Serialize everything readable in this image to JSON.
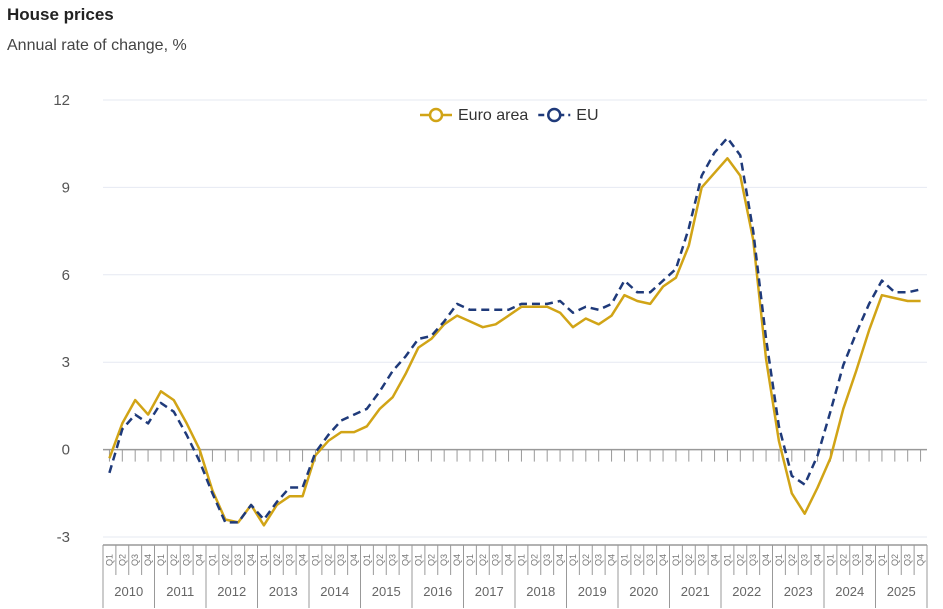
{
  "chart_data": {
    "type": "line",
    "title": "House prices",
    "subtitle": "Annual rate of change, %",
    "ylim": [
      -3,
      12
    ],
    "yticks": [
      -3,
      0,
      3,
      6,
      9,
      12
    ],
    "years": [
      "2010",
      "2011",
      "2012",
      "2013",
      "2014",
      "2015",
      "2016",
      "2017",
      "2018",
      "2019",
      "2020",
      "2021",
      "2022",
      "2023",
      "2024",
      "2025"
    ],
    "quarters": [
      "Q1",
      "Q2",
      "Q3",
      "Q4"
    ],
    "grid": true,
    "legend_position": "top",
    "series": [
      {
        "name": "Euro area",
        "color": "#d1a416",
        "dash": false,
        "values": [
          -0.3,
          0.9,
          1.7,
          1.2,
          2.0,
          1.7,
          0.9,
          0.0,
          -1.4,
          -2.4,
          -2.5,
          -1.9,
          -2.6,
          -1.9,
          -1.6,
          -1.6,
          -0.2,
          0.3,
          0.6,
          0.6,
          0.8,
          1.4,
          1.8,
          2.6,
          3.5,
          3.8,
          4.3,
          4.6,
          4.4,
          4.2,
          4.3,
          4.6,
          4.9,
          4.9,
          4.9,
          4.7,
          4.2,
          4.5,
          4.3,
          4.6,
          5.3,
          5.1,
          5.0,
          5.6,
          5.9,
          7.0,
          9.0,
          9.5,
          10.0,
          9.4,
          7.2,
          3.1,
          0.3,
          -1.5,
          -2.2,
          -1.3,
          -0.3,
          1.4,
          2.7,
          4.1,
          5.3,
          5.2,
          5.1,
          5.1
        ]
      },
      {
        "name": "EU",
        "color": "#1f3a7a",
        "dash": true,
        "values": [
          -0.8,
          0.7,
          1.2,
          0.9,
          1.6,
          1.3,
          0.5,
          -0.4,
          -1.5,
          -2.5,
          -2.5,
          -1.9,
          -2.4,
          -1.8,
          -1.3,
          -1.3,
          -0.1,
          0.5,
          1.0,
          1.2,
          1.4,
          2.0,
          2.7,
          3.2,
          3.8,
          3.9,
          4.4,
          5.0,
          4.8,
          4.8,
          4.8,
          4.8,
          5.0,
          5.0,
          5.0,
          5.1,
          4.7,
          4.9,
          4.8,
          5.0,
          5.8,
          5.4,
          5.4,
          5.8,
          6.2,
          7.6,
          9.4,
          10.2,
          10.7,
          10.1,
          7.5,
          3.8,
          0.8,
          -0.9,
          -1.2,
          -0.2,
          1.3,
          2.9,
          4.0,
          5.0,
          5.8,
          5.4,
          5.4,
          5.5
        ]
      }
    ]
  }
}
